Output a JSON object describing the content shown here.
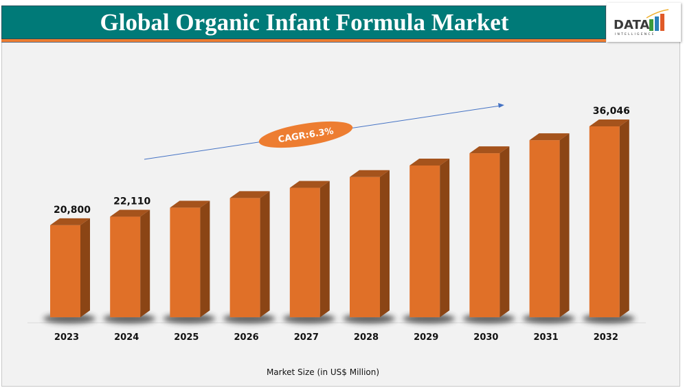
{
  "header": {
    "title": "Global Organic Infant Formula Market"
  },
  "logo": {
    "text": "DATA",
    "subtext": "INTELLIGENCE"
  },
  "colors": {
    "header": "#007a78",
    "accent": "#ed7d31",
    "bar_front": "#e07028",
    "bar_side": "#8b4515",
    "bar_top": "#a5531c",
    "trend_line": "#4472c4"
  },
  "chart_data": {
    "type": "bar",
    "style": "3d-column",
    "title": "Global Organic Infant Formula Market",
    "xlabel": "Market Size (in US$ Million)",
    "ylabel": "",
    "categories": [
      "2023",
      "2024",
      "2025",
      "2026",
      "2027",
      "2028",
      "2029",
      "2030",
      "2031",
      "2032"
    ],
    "values": [
      20800,
      22110,
      null,
      null,
      null,
      null,
      null,
      null,
      null,
      36046
    ],
    "estimated_values": [
      20800,
      22110,
      23503,
      24984,
      26558,
      28231,
      30009,
      31900,
      33910,
      36046
    ],
    "data_labels": [
      "20,800",
      "22,110",
      "",
      "",
      "",
      "",
      "",
      "",
      "",
      "36,046"
    ],
    "ylim": [
      6600,
      40000
    ],
    "grid": false,
    "annotation": "CAGR:6.3%"
  }
}
